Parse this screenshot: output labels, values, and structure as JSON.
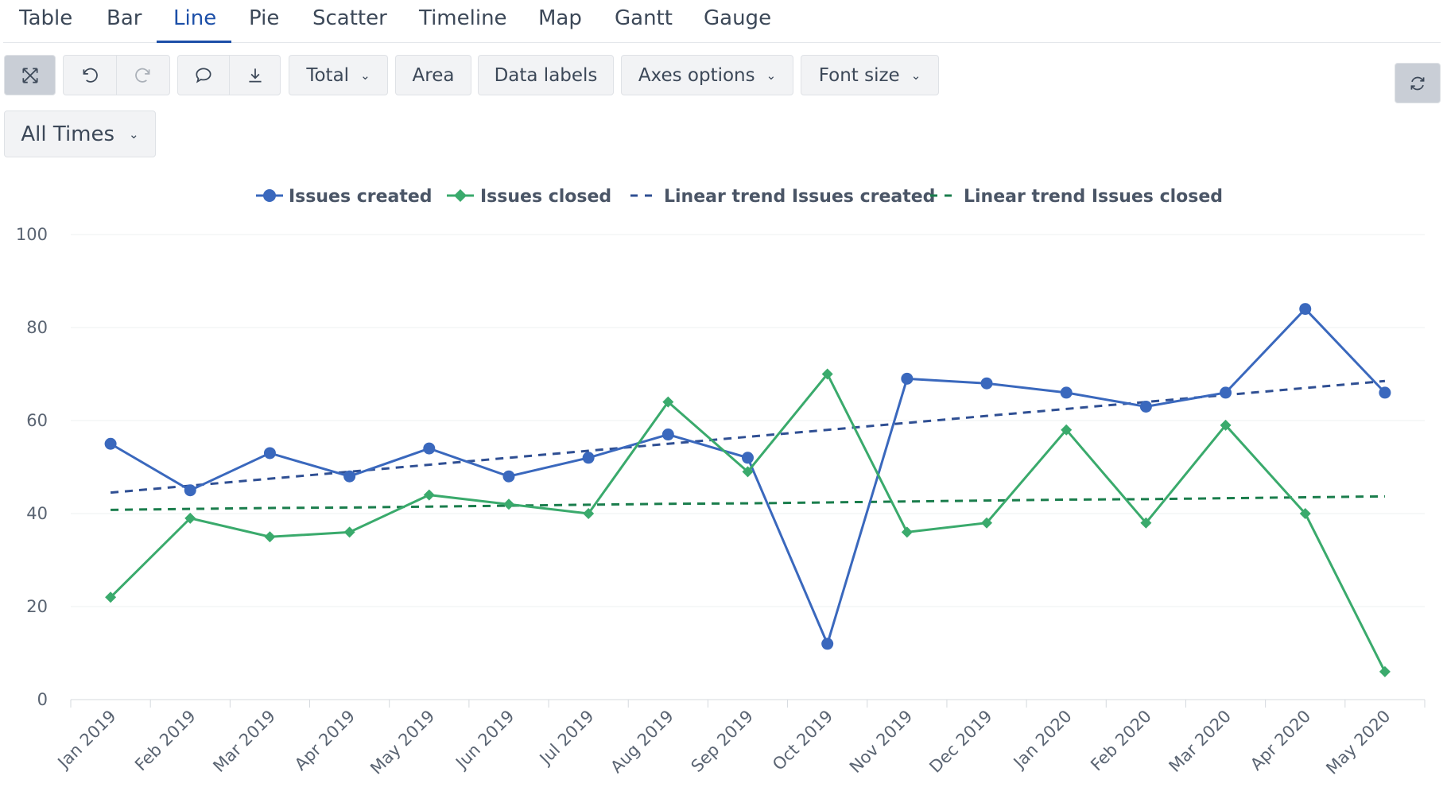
{
  "tabs": [
    "Table",
    "Bar",
    "Line",
    "Pie",
    "Scatter",
    "Timeline",
    "Map",
    "Gantt",
    "Gauge"
  ],
  "active_tab": 2,
  "toolbar": {
    "total": "Total",
    "area": "Area",
    "data_labels": "Data labels",
    "axes_options": "Axes options",
    "font_size": "Font size"
  },
  "time_filter": "All Times",
  "chart_data": {
    "type": "line",
    "categories": [
      "Jan 2019",
      "Feb 2019",
      "Mar 2019",
      "Apr 2019",
      "May 2019",
      "Jun 2019",
      "Jul 2019",
      "Aug 2019",
      "Sep 2019",
      "Oct 2019",
      "Nov 2019",
      "Dec 2019",
      "Jan 2020",
      "Feb 2020",
      "Mar 2020",
      "Apr 2020",
      "May 2020"
    ],
    "series": [
      {
        "name": "Issues created",
        "color": "#3a68bd",
        "marker": "circle",
        "dash": false,
        "values": [
          55,
          45,
          53,
          48,
          54,
          48,
          52,
          57,
          52,
          12,
          69,
          68,
          66,
          63,
          66,
          84,
          66
        ]
      },
      {
        "name": "Issues closed",
        "color": "#3aaa6c",
        "marker": "diamond",
        "dash": false,
        "values": [
          22,
          39,
          35,
          36,
          44,
          42,
          40,
          64,
          49,
          70,
          36,
          38,
          58,
          38,
          59,
          40,
          6
        ]
      },
      {
        "name": "Linear trend Issues created",
        "color": "#2f4f93",
        "marker": "none",
        "dash": true,
        "values": [
          44.5,
          46,
          47.5,
          49,
          50.5,
          52,
          53.5,
          55,
          56.5,
          58,
          59.5,
          61,
          62.5,
          64,
          65.5,
          67,
          68.5
        ]
      },
      {
        "name": "Linear trend Issues closed",
        "color": "#1a7d4c",
        "marker": "none",
        "dash": true,
        "values": [
          40.8,
          41.0,
          41.2,
          41.3,
          41.5,
          41.7,
          41.9,
          42.1,
          42.2,
          42.4,
          42.6,
          42.8,
          43.0,
          43.1,
          43.3,
          43.5,
          43.7
        ]
      }
    ],
    "ylim": [
      0,
      100
    ],
    "yticks": [
      0,
      20,
      40,
      60,
      80,
      100
    ],
    "grid": true,
    "legend": "top"
  }
}
